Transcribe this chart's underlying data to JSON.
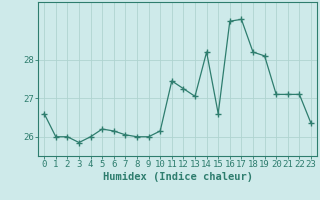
{
  "x": [
    0,
    1,
    2,
    3,
    4,
    5,
    6,
    7,
    8,
    9,
    10,
    11,
    12,
    13,
    14,
    15,
    16,
    17,
    18,
    19,
    20,
    21,
    22,
    23
  ],
  "y": [
    26.6,
    26.0,
    26.0,
    25.85,
    26.0,
    26.2,
    26.15,
    26.05,
    26.0,
    26.0,
    26.15,
    27.45,
    27.25,
    27.05,
    28.2,
    26.6,
    29.0,
    29.05,
    28.2,
    28.1,
    27.1,
    27.1,
    27.1,
    26.35
  ],
  "line_color": "#2e7d6e",
  "marker": "+",
  "marker_size": 4,
  "marker_lw": 1.0,
  "bg_color": "#ceeaea",
  "grid_color": "#afd4d0",
  "xlabel": "Humidex (Indice chaleur)",
  "yticks": [
    26,
    27,
    28
  ],
  "ylim": [
    25.5,
    29.5
  ],
  "xlim": [
    -0.5,
    23.5
  ],
  "xlabel_fontsize": 7.5,
  "tick_fontsize": 6.5,
  "axis_color": "#2e7d6e",
  "tick_color": "#2e7d6e",
  "line_width": 0.9
}
